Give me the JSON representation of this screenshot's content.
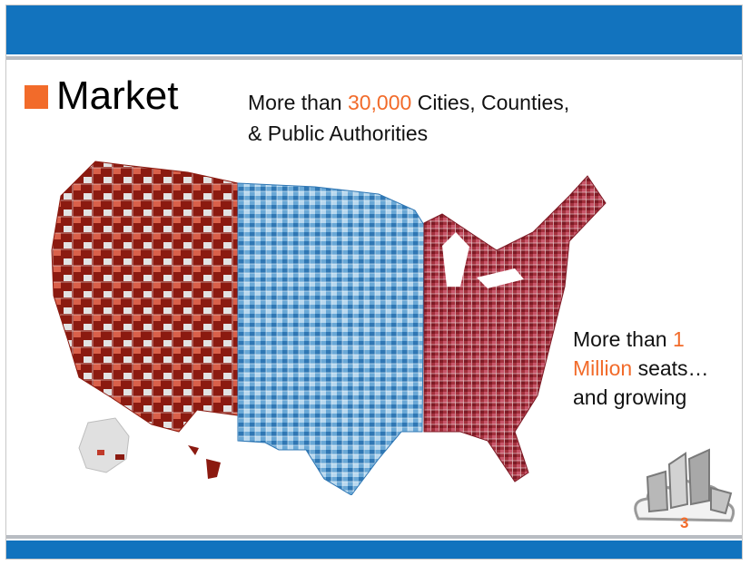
{
  "slide": {
    "title": "Market",
    "subtitle_prefix": "More than ",
    "subtitle_number": "30,000",
    "subtitle_rest_line1": " Cities, Counties,",
    "subtitle_line2": "& Public Authorities",
    "side_prefix": "More than ",
    "side_number_1": "1",
    "side_number_2": "Million",
    "side_rest": " seats…",
    "side_line3": "and growing",
    "page_number": "3"
  },
  "colors": {
    "brand_blue": "#1273be",
    "accent_orange": "#f26b2a",
    "west_red": "#8b1a10",
    "central_blue": "#4d93c9",
    "east_red": "#9e2a36"
  },
  "icons": {
    "map": "us-county-map",
    "logo": "city-cloud-logo"
  }
}
